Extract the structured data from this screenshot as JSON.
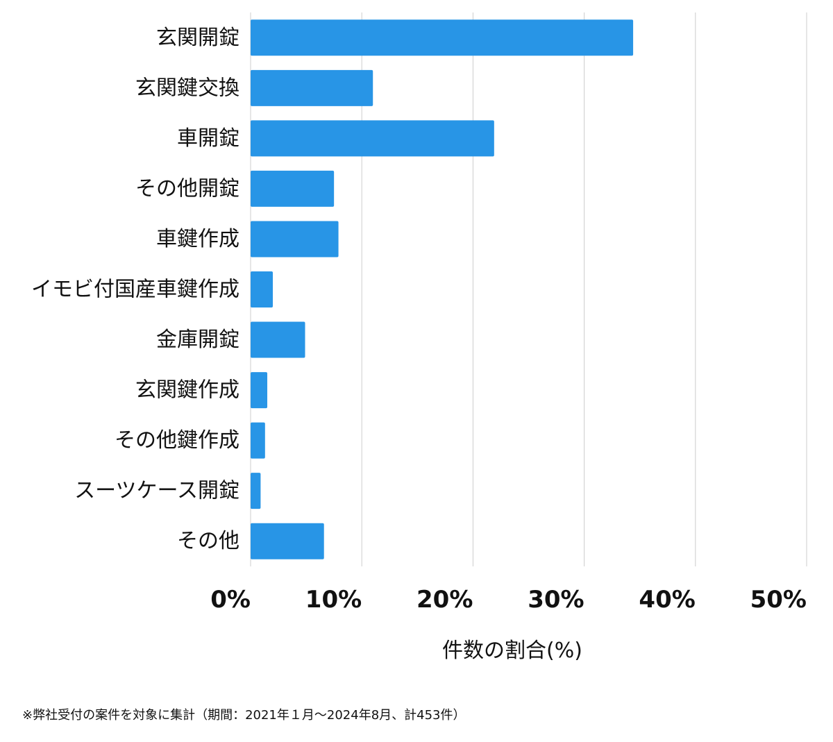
{
  "chart_data": {
    "type": "bar",
    "orientation": "horizontal",
    "categories": [
      "玄関開錠",
      "玄関鍵交換",
      "車開錠",
      "その他開錠",
      "車鍵作成",
      "イモビ付国産車鍵作成",
      "金庫開錠",
      "玄関鍵作成",
      "その他鍵作成",
      "スーツケース開錠",
      "その他"
    ],
    "values": [
      34.4,
      11.0,
      21.9,
      7.5,
      7.9,
      2.0,
      4.9,
      1.5,
      1.3,
      0.9,
      6.6
    ],
    "xlim": [
      0,
      50
    ],
    "xticks": [
      0,
      10,
      20,
      30,
      40,
      50
    ],
    "xtick_labels": [
      "0%",
      "10%",
      "20%",
      "30%",
      "40%",
      "50%"
    ],
    "xlabel": "件数の割合(%)",
    "ylabel": "",
    "title": "",
    "grid": "vertical",
    "legend": "none",
    "bar_color": "#2895e6",
    "grid_color": "#cccccc"
  },
  "footnote": "※弊社受付の案件を対象に集計（期間：2021年１月〜2024年8月、計453件）"
}
